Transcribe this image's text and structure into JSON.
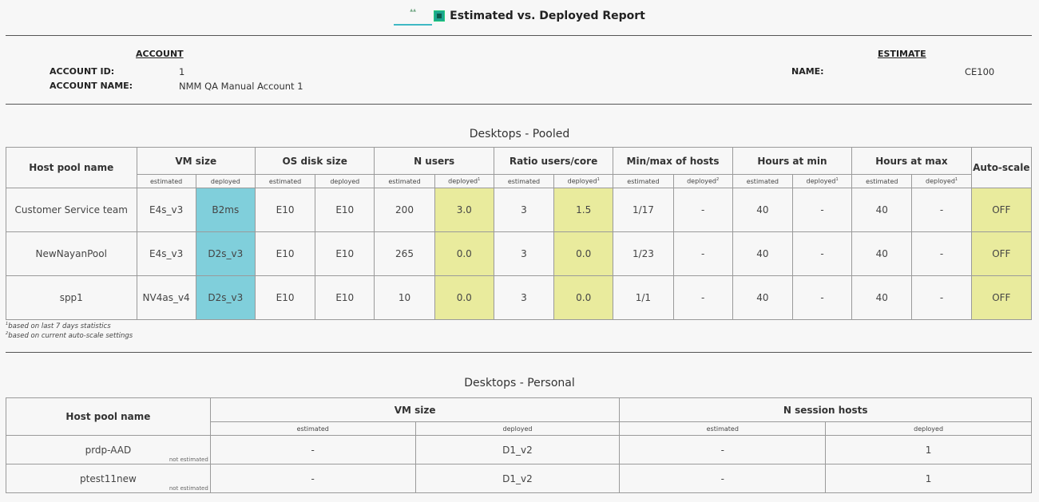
{
  "report": {
    "title": "Estimated vs. Deployed Report"
  },
  "account": {
    "heading": "ACCOUNT",
    "id_label": "ACCOUNT ID:",
    "id_value": "1",
    "name_label": "ACCOUNT NAME:",
    "name_value": "NMM QA Manual Account 1"
  },
  "estimate": {
    "heading": "ESTIMATE",
    "name_label": "NAME:",
    "name_value": "CE100"
  },
  "pooled": {
    "title": "Desktops - Pooled",
    "headers": {
      "host_pool": "Host pool name",
      "vm_size": "VM size",
      "os_disk": "OS disk size",
      "n_users": "N users",
      "ratio": "Ratio users/core",
      "minmax": "Min/max of hosts",
      "hours_min": "Hours at min",
      "hours_max": "Hours at max",
      "autoscale": "Auto-scale",
      "estimated": "estimated",
      "deployed": "deployed"
    },
    "rows": [
      {
        "name": "Customer Service team",
        "vm_est": "E4s_v3",
        "vm_dep": "B2ms",
        "disk_est": "E10",
        "disk_dep": "E10",
        "users_est": "200",
        "users_dep": "3.0",
        "ratio_est": "3",
        "ratio_dep": "1.5",
        "mm_est": "1/17",
        "mm_dep": "-",
        "hmin_est": "40",
        "hmin_dep": "-",
        "hmax_est": "40",
        "hmax_dep": "-",
        "autoscale": "OFF"
      },
      {
        "name": "NewNayanPool",
        "vm_est": "E4s_v3",
        "vm_dep": "D2s_v3",
        "disk_est": "E10",
        "disk_dep": "E10",
        "users_est": "265",
        "users_dep": "0.0",
        "ratio_est": "3",
        "ratio_dep": "0.0",
        "mm_est": "1/23",
        "mm_dep": "-",
        "hmin_est": "40",
        "hmin_dep": "-",
        "hmax_est": "40",
        "hmax_dep": "-",
        "autoscale": "OFF"
      },
      {
        "name": "spp1",
        "vm_est": "NV4as_v4",
        "vm_dep": "D2s_v3",
        "disk_est": "E10",
        "disk_dep": "E10",
        "users_est": "10",
        "users_dep": "0.0",
        "ratio_est": "3",
        "ratio_dep": "0.0",
        "mm_est": "1/1",
        "mm_dep": "-",
        "hmin_est": "40",
        "hmin_dep": "-",
        "hmax_est": "40",
        "hmax_dep": "-",
        "autoscale": "OFF"
      }
    ],
    "footnote1": "based on last 7 days statistics",
    "footnote2": "based on current auto-scale settings"
  },
  "personal": {
    "title": "Desktops - Personal",
    "headers": {
      "host_pool": "Host pool name",
      "vm_size": "VM size",
      "n_hosts": "N session hosts",
      "estimated": "estimated",
      "deployed": "deployed"
    },
    "rows": [
      {
        "name": "prdp-AAD",
        "note": "not estimated",
        "vm_est": "-",
        "vm_dep": "D1_v2",
        "hosts_est": "-",
        "hosts_dep": "1"
      },
      {
        "name": "ptest11new",
        "note": "not estimated",
        "vm_est": "-",
        "vm_dep": "D1_v2",
        "hosts_est": "-",
        "hosts_dep": "1"
      }
    ]
  },
  "colors": {
    "deployed_vm_highlight": "#80cfdb",
    "deployed_metric_highlight": "#e9eb9d",
    "background": "#f7f7f7"
  }
}
